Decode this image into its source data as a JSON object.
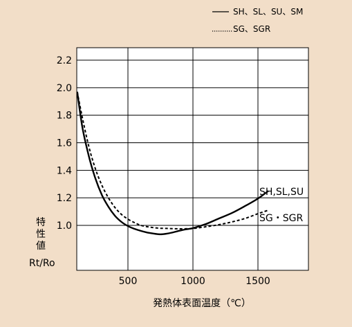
{
  "chart_data": {
    "type": "line",
    "xlabel": "発熱体表面温度（℃）",
    "ylabel": [
      "特",
      "性",
      "値"
    ],
    "ylabel_sub": "Rt/Ro",
    "xlim": [
      100,
      1700
    ],
    "ylim": [
      0.6,
      2.3
    ],
    "x_ticks": [
      {
        "value": 500,
        "label": "500"
      },
      {
        "value": 1000,
        "label": "1000"
      },
      {
        "value": 1500,
        "label": "1500"
      }
    ],
    "y_ticks": [
      {
        "value": 2.2,
        "label": "2.2"
      },
      {
        "value": 2.0,
        "label": "2.0"
      },
      {
        "value": 1.8,
        "label": "1.8"
      },
      {
        "value": 1.6,
        "label": "1.6"
      },
      {
        "value": 1.4,
        "label": "1.4"
      },
      {
        "value": 1.2,
        "label": "1.2"
      },
      {
        "value": 1.0,
        "label": "1.0"
      }
    ],
    "grid_x": [
      500,
      1000,
      1500
    ],
    "grid_y": [
      2.2,
      2.0,
      1.8,
      1.6,
      1.4,
      1.2,
      1.0
    ],
    "legend": [
      {
        "symbol": "──",
        "text": "SH、SL、SU、SM",
        "style": "solid"
      },
      {
        "symbol": "..........",
        "text": "SG、SGR",
        "style": "dotted"
      }
    ],
    "legend_position": "top-right",
    "series": [
      {
        "name": "SH,SL,SU",
        "style": "solid",
        "x": [
          110,
          150,
          200,
          250,
          300,
          350,
          400,
          450,
          500,
          550,
          600,
          650,
          700,
          750,
          800,
          850,
          900,
          950,
          1000,
          1100,
          1200,
          1300,
          1400,
          1500,
          1580
        ],
        "y": [
          1.97,
          1.71,
          1.5,
          1.34,
          1.22,
          1.135,
          1.07,
          1.025,
          0.995,
          0.975,
          0.96,
          0.948,
          0.94,
          0.935,
          0.94,
          0.95,
          0.962,
          0.972,
          0.98,
          1.01,
          1.05,
          1.09,
          1.14,
          1.195,
          1.25
        ]
      },
      {
        "name": "SG・SGR",
        "style": "dashed",
        "x": [
          110,
          150,
          200,
          250,
          300,
          350,
          400,
          450,
          500,
          550,
          600,
          650,
          700,
          750,
          800,
          850,
          900,
          950,
          1000,
          1100,
          1200,
          1300,
          1400,
          1500,
          1580
        ],
        "y": [
          1.97,
          1.78,
          1.57,
          1.41,
          1.29,
          1.2,
          1.13,
          1.08,
          1.045,
          1.02,
          1.0,
          0.99,
          0.983,
          0.979,
          0.978,
          0.976,
          0.975,
          0.976,
          0.977,
          0.99,
          1.005,
          1.025,
          1.05,
          1.085,
          1.11
        ]
      }
    ]
  }
}
